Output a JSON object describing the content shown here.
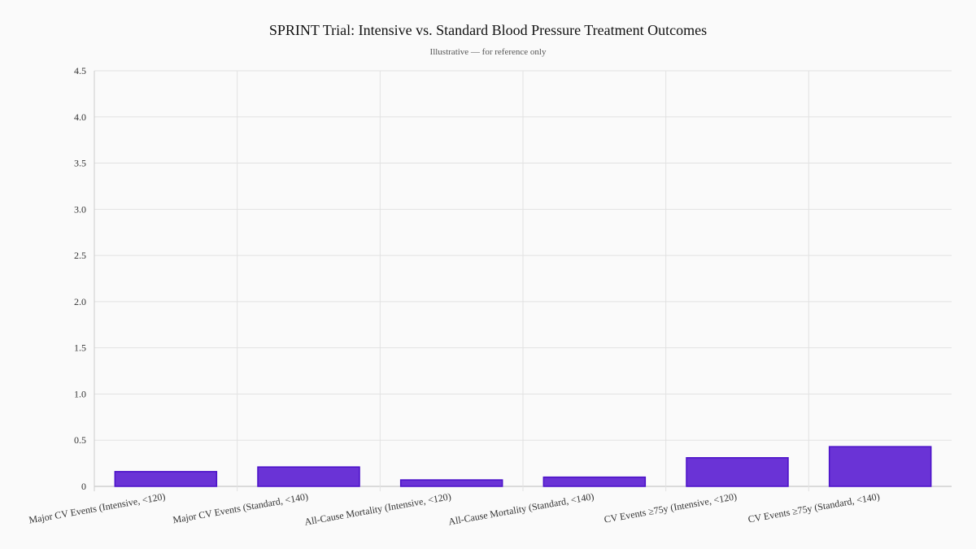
{
  "chart_data": {
    "type": "bar",
    "title": "SPRINT Trial: Intensive vs. Standard Blood Pressure Treatment Outcomes",
    "subtitle": "Illustrative — for reference only",
    "xlabel": "",
    "ylabel": "",
    "categories": [
      "Major CV Events (Intensive, <120)",
      "Major CV Events (Standard, <140)",
      "All-Cause Mortality (Intensive, <120)",
      "All-Cause Mortality (Standard, <140)",
      "CV Events ≥75y (Intensive, <120)",
      "CV Events ≥75y (Standard, <140)"
    ],
    "values": [
      0.16,
      0.21,
      0.07,
      0.1,
      0.31,
      0.43
    ],
    "ylim": [
      0,
      4.5
    ],
    "yticks": [
      "0",
      "0.5",
      "1.0",
      "1.5",
      "2.0",
      "2.5",
      "3.0",
      "3.5",
      "4.0",
      "4.5"
    ],
    "grid": true,
    "legend": "none",
    "colors": {
      "bar_fill": "#6a33d6",
      "bar_stroke": "#4a10c8",
      "grid": "#e2e2e2",
      "background": "#fafafa"
    }
  }
}
